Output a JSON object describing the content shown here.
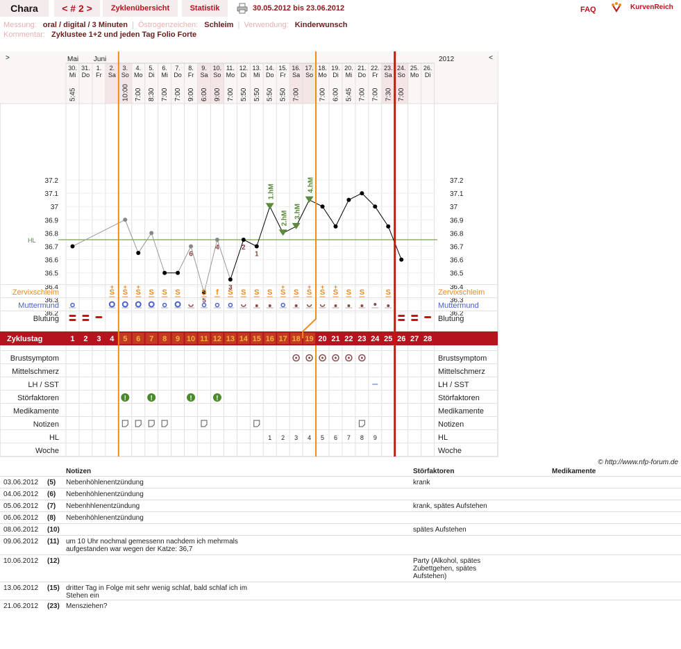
{
  "header": {
    "user": "Chara",
    "cycle_nav": "< # 2 >",
    "tab_overview": "Zyklenübersicht",
    "tab_stats": "Statistik",
    "date_range": "30.05.2012 bis 23.06.2012",
    "faq": "FAQ",
    "brand": "KurvenReich"
  },
  "meta": {
    "messung_label": "Messung:",
    "messung_value": "oral / digital / 3 Minuten",
    "oestrogen_label": "Östrogenzeichen:",
    "oestrogen_value": "Schleim",
    "verwendung_label": "Verwendung:",
    "verwendung_value": "Kinderwunsch",
    "kommentar_label": "Kommentar:",
    "kommentar_value": "Zyklustee 1+2 und jeden Tag Folio Forte"
  },
  "chart_data": {
    "type": "line",
    "nav_left": ">",
    "nav_right": "<",
    "year": "2012",
    "months": [
      {
        "label": "Mai",
        "day": 1
      },
      {
        "label": "Juni",
        "day": 3
      }
    ],
    "days": [
      {
        "cd": 1,
        "date": "30.",
        "wd": "Mi",
        "time": "5:45",
        "temp": 36.7,
        "excluded": false,
        "cm": "",
        "mu": "dot-open",
        "bleed": "heavy",
        "we": false
      },
      {
        "cd": 2,
        "date": "31.",
        "wd": "Do",
        "time": "",
        "temp": null,
        "excluded": false,
        "cm": "",
        "mu": "",
        "bleed": "heavy",
        "we": false
      },
      {
        "cd": 3,
        "date": "1.",
        "wd": "Fr",
        "time": "",
        "temp": null,
        "excluded": false,
        "cm": "",
        "mu": "",
        "bleed": "medium",
        "we": false
      },
      {
        "cd": 4,
        "date": "2.",
        "wd": "Sa",
        "time": "",
        "temp": null,
        "excluded": false,
        "cm": "S+",
        "mu": "open",
        "bleed": "",
        "we": true
      },
      {
        "cd": 5,
        "date": "3.",
        "wd": "So",
        "time": "10:00",
        "temp": 36.9,
        "excluded": true,
        "cm": "S+",
        "mu": "open",
        "bleed": "",
        "we": true
      },
      {
        "cd": 6,
        "date": "4.",
        "wd": "Mo",
        "time": "7:00",
        "temp": 36.65,
        "excluded": false,
        "cm": "S+",
        "mu": "open",
        "bleed": "",
        "we": false
      },
      {
        "cd": 7,
        "date": "5.",
        "wd": "Di",
        "time": "8:30",
        "temp": 36.8,
        "excluded": true,
        "cm": "S",
        "mu": "open",
        "bleed": "",
        "we": false
      },
      {
        "cd": 8,
        "date": "6.",
        "wd": "Mi",
        "time": "7:00",
        "temp": 36.5,
        "excluded": false,
        "cm": "S",
        "mu": "dot-open",
        "bleed": "",
        "we": false
      },
      {
        "cd": 9,
        "date": "7.",
        "wd": "Do",
        "time": "7:00",
        "temp": 36.5,
        "excluded": false,
        "cm": "S",
        "mu": "open",
        "bleed": "",
        "we": false
      },
      {
        "cd": 10,
        "date": "8.",
        "wd": "Fr",
        "time": "9:00",
        "temp": 36.7,
        "excluded": true,
        "cm": "",
        "mu": "half",
        "bleed": "",
        "we": false,
        "num": "6"
      },
      {
        "cd": 11,
        "date": "9.",
        "wd": "Sa",
        "time": "6:00",
        "temp": 36.35,
        "excluded": false,
        "cm": "S",
        "mu": "dot-open",
        "bleed": "",
        "we": true,
        "num": "5"
      },
      {
        "cd": 12,
        "date": "10.",
        "wd": "So",
        "time": "9:00",
        "temp": 36.75,
        "excluded": true,
        "cm": "f",
        "mu": "dot-open",
        "bleed": "",
        "we": true,
        "num": "4"
      },
      {
        "cd": 13,
        "date": "11.",
        "wd": "Mo",
        "time": "7:00",
        "temp": 36.45,
        "excluded": false,
        "cm": "S",
        "mu": "dot-open",
        "bleed": "",
        "we": false,
        "num": "3"
      },
      {
        "cd": 14,
        "date": "12.",
        "wd": "Di",
        "time": "5:50",
        "temp": 36.75,
        "excluded": false,
        "cm": "S",
        "mu": "half",
        "bleed": "",
        "we": false,
        "num": "2"
      },
      {
        "cd": 15,
        "date": "13.",
        "wd": "Mi",
        "time": "5:50",
        "temp": 36.7,
        "excluded": false,
        "cm": "S",
        "mu": "dot",
        "bleed": "",
        "we": false,
        "num": "1"
      },
      {
        "cd": 16,
        "date": "14.",
        "wd": "Do",
        "time": "5:50",
        "temp": 37.0,
        "excluded": false,
        "cm": "S",
        "mu": "dot",
        "bleed": "",
        "we": false,
        "mark": "1.hM"
      },
      {
        "cd": 17,
        "date": "15.",
        "wd": "Fr",
        "time": "5:50",
        "temp": 36.8,
        "excluded": false,
        "cm": "S+",
        "mu": "dot-open",
        "bleed": "",
        "we": false,
        "mark": "2.hM"
      },
      {
        "cd": 18,
        "date": "16.",
        "wd": "Sa",
        "time": "7:00",
        "temp": 36.85,
        "excluded": false,
        "cm": "S",
        "mu": "dot",
        "bleed": "",
        "we": true,
        "mark": "3.hM"
      },
      {
        "cd": 19,
        "date": "17.",
        "wd": "So",
        "time": "",
        "temp": 37.05,
        "excluded": false,
        "cm": "S+",
        "mu": "half",
        "bleed": "",
        "we": true,
        "mark": "4.hM"
      },
      {
        "cd": 20,
        "date": "18.",
        "wd": "Mo",
        "time": "7:00",
        "temp": 37.0,
        "excluded": false,
        "cm": "S+",
        "mu": "half",
        "bleed": "",
        "we": false
      },
      {
        "cd": 21,
        "date": "19.",
        "wd": "Di",
        "time": "6:00",
        "temp": 36.85,
        "excluded": false,
        "cm": "S+",
        "mu": "dot",
        "bleed": "",
        "we": false
      },
      {
        "cd": 22,
        "date": "20.",
        "wd": "Mi",
        "time": "5:45",
        "temp": 37.05,
        "excluded": false,
        "cm": "S",
        "mu": "dot",
        "bleed": "",
        "we": false
      },
      {
        "cd": 23,
        "date": "21.",
        "wd": "Do",
        "time": "7:00",
        "temp": 37.1,
        "excluded": false,
        "cm": "S",
        "mu": "dot",
        "bleed": "",
        "we": false
      },
      {
        "cd": 24,
        "date": "22.",
        "wd": "Fr",
        "time": "7:00",
        "temp": 37.0,
        "excluded": false,
        "cm": "",
        "mu": "dot-line",
        "bleed": "",
        "we": false
      },
      {
        "cd": 25,
        "date": "23.",
        "wd": "Sa",
        "time": "7:30",
        "temp": 36.85,
        "excluded": false,
        "cm": "S",
        "mu": "dot",
        "bleed": "",
        "we": true
      },
      {
        "cd": 26,
        "date": "24.",
        "wd": "So",
        "time": "7:00",
        "temp": 36.6,
        "excluded": false,
        "cm": "",
        "mu": "",
        "bleed": "heavy",
        "we": true
      },
      {
        "cd": 27,
        "date": "25.",
        "wd": "Mo",
        "time": "",
        "temp": null,
        "excluded": false,
        "cm": "",
        "mu": "",
        "bleed": "heavy",
        "we": false
      },
      {
        "cd": 28,
        "date": "26.",
        "wd": "Di",
        "time": "",
        "temp": null,
        "excluded": false,
        "cm": "",
        "mu": "",
        "bleed": "medium",
        "we": false
      }
    ],
    "ylim": [
      36.1,
      37.3
    ],
    "yticks": [
      37.2,
      37.1,
      37.0,
      36.9,
      36.8,
      36.7,
      36.6,
      36.5,
      36.4,
      36.3,
      36.2
    ],
    "ytick_labels": [
      "37.2",
      "37.1",
      "37",
      "36.9",
      "36.8",
      "36.7",
      "36.6",
      "36.5",
      "36.4",
      "36.3",
      "36.2"
    ],
    "hl_label": "HL",
    "hl_value": 36.75,
    "orange_lines_after_cd": [
      4,
      19
    ],
    "red_line_after_cd": 25,
    "row_labels": {
      "cervix": "Zervixschleim",
      "muttermund": "Muttermund",
      "blutung": "Blutung",
      "zyklustag": "Zyklustag",
      "brust": "Brustsymptom",
      "mittel": "Mittelschmerz",
      "lh": "LH / SST",
      "stoer": "Störfaktoren",
      "medi": "Medikamente",
      "notizen": "Notizen",
      "hl": "HL",
      "woche": "Woche"
    },
    "brust_days": [
      18,
      19,
      20,
      21,
      22,
      23
    ],
    "lh_days": [
      24
    ],
    "stoer_days": [
      5,
      7,
      10,
      12
    ],
    "notiz_days": [
      5,
      6,
      7,
      8,
      11,
      15,
      23
    ],
    "hl_numbers": [
      {
        "cd": 16,
        "n": "1"
      },
      {
        "cd": 17,
        "n": "2"
      },
      {
        "cd": 18,
        "n": "3"
      },
      {
        "cd": 19,
        "n": "4"
      },
      {
        "cd": 20,
        "n": "5"
      },
      {
        "cd": 21,
        "n": "6"
      },
      {
        "cd": 22,
        "n": "7"
      },
      {
        "cd": 23,
        "n": "8"
      },
      {
        "cd": 24,
        "n": "9"
      }
    ],
    "orange_cd_numbers": [
      5,
      6,
      7,
      8,
      9,
      10,
      11,
      12,
      13,
      14,
      15,
      16,
      17,
      18,
      19
    ]
  },
  "notes": {
    "copyright": "© http://www.nfp-forum.de",
    "col_notizen": "Notizen",
    "col_stoer": "Störfaktoren",
    "col_medi": "Medikamente",
    "rows": [
      {
        "date": "03.06.2012",
        "cd": "(5)",
        "note": "Nebenhöhlenentzündung",
        "stoer": "krank"
      },
      {
        "date": "04.06.2012",
        "cd": "(6)",
        "note": "Nebenhöhlenentzündung",
        "stoer": ""
      },
      {
        "date": "05.06.2012",
        "cd": "(7)",
        "note": "Nebenhhlenentzündung",
        "stoer": "krank, spätes Aufstehen"
      },
      {
        "date": "06.06.2012",
        "cd": "(8)",
        "note": "Nebenhöhlenentzündung",
        "stoer": ""
      },
      {
        "date": "08.06.2012",
        "cd": "(10)",
        "note": "",
        "stoer": "spätes Aufstehen"
      },
      {
        "date": "09.06.2012",
        "cd": "(11)",
        "note": "um 10 Uhr nochmal gemessenn nachdem ich mehrmals aufgestanden war wegen der Katze: 36,7",
        "stoer": ""
      },
      {
        "date": "10.06.2012",
        "cd": "(12)",
        "note": "",
        "stoer": "Party (Alkohol, spätes Zubettgehen, spätes Aufstehen)"
      },
      {
        "date": "13.06.2012",
        "cd": "(15)",
        "note": "dritter Tag in Folge mit sehr wenig schlaf, bald schlaf ich im Stehen ein",
        "stoer": ""
      },
      {
        "date": "21.06.2012",
        "cd": "(23)",
        "note": "Mensziehen?",
        "stoer": ""
      }
    ]
  },
  "colors": {
    "brand_red": "#b5141f",
    "orange": "#ef8a1a",
    "muttermund_blue": "#4a60c8",
    "hl_green": "#5a8a2a",
    "marker_green": "#5a8a3a",
    "weekend": "#f4e6e6"
  }
}
